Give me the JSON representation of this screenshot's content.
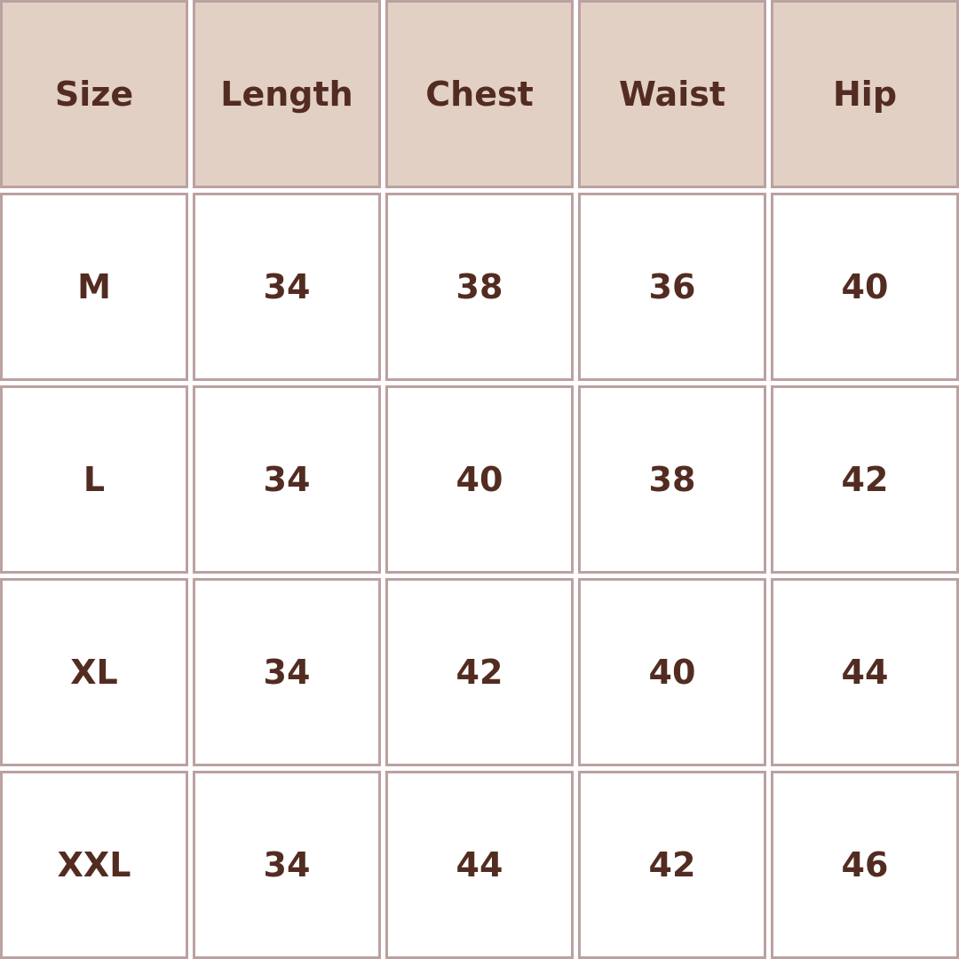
{
  "colors": {
    "header_bg": "#e3d0c5",
    "border": "#bba1a0",
    "text": "#532c21"
  },
  "headers": [
    "Size",
    "Length",
    "Chest",
    "Waist",
    "Hip"
  ],
  "rows": [
    [
      "M",
      "34",
      "38",
      "36",
      "40"
    ],
    [
      "L",
      "34",
      "40",
      "38",
      "42"
    ],
    [
      "XL",
      "34",
      "42",
      "40",
      "44"
    ],
    [
      "XXL",
      "34",
      "44",
      "42",
      "46"
    ]
  ]
}
